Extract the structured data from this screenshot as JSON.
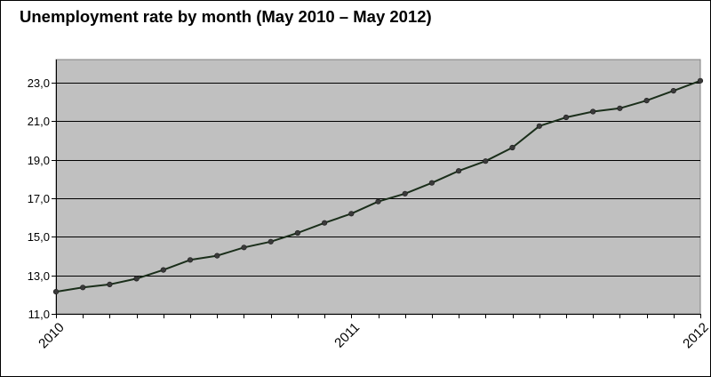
{
  "chart_data": {
    "type": "line",
    "title": "Unemployment rate by month (May 2010 – May 2012)",
    "xlabel": "",
    "ylabel": "",
    "x_tick_labels": [
      "2010",
      "2011",
      "2012"
    ],
    "y_tick_labels": [
      "11,0",
      "13,0",
      "15,0",
      "17,0",
      "19,0",
      "21,0",
      "23,0"
    ],
    "ylim": [
      11,
      24.2
    ],
    "grid": "horizontal",
    "legend": "none",
    "colors": {
      "plot_background": "#c0c0c0",
      "line": "#1a2e1a",
      "gridline": "#000000"
    },
    "series": [
      {
        "values": [
          12.15,
          12.37,
          12.53,
          12.83,
          13.28,
          13.8,
          14.02,
          14.45,
          14.75,
          15.2,
          15.72,
          16.2,
          16.83,
          17.24,
          17.8,
          18.42,
          18.93,
          19.63,
          20.75,
          21.2,
          21.5,
          21.67,
          22.07,
          22.58,
          23.1
        ]
      }
    ]
  }
}
